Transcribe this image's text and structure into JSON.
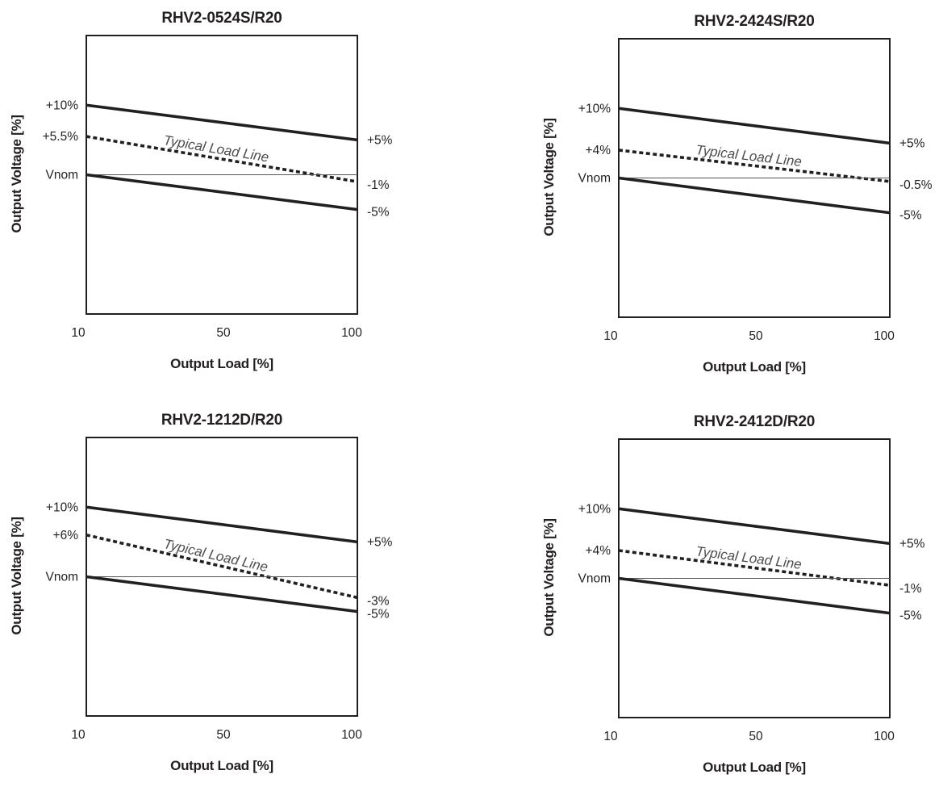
{
  "chart_data": [
    {
      "type": "line",
      "title": "RHV2-0524S/R20",
      "xlabel": "Output Load [%]",
      "ylabel": "Output Voltage [%]",
      "x_ticks": [
        "10",
        "50",
        "100"
      ],
      "xlim": [
        10,
        100
      ],
      "ylim": [
        -20,
        20
      ],
      "y_axis_labels": [
        "+10%",
        "+5.5%",
        "Vnom"
      ],
      "right_labels": [
        "+5%",
        "-1%",
        "-5%"
      ],
      "annotation": "Typical Load Line",
      "series": [
        {
          "x": [
            10,
            100
          ],
          "y": [
            10,
            5
          ],
          "style": "solid"
        },
        {
          "x": [
            10,
            100
          ],
          "y": [
            5.5,
            -1
          ],
          "style": "dashed"
        },
        {
          "x": [
            10,
            100
          ],
          "y": [
            0,
            0
          ],
          "style": "thin"
        },
        {
          "x": [
            10,
            100
          ],
          "y": [
            0,
            -5
          ],
          "style": "solid"
        }
      ]
    },
    {
      "type": "line",
      "title": "RHV2-2424S/R20",
      "xlabel": "Output Load [%]",
      "ylabel": "Output Voltage [%]",
      "x_ticks": [
        "10",
        "50",
        "100"
      ],
      "xlim": [
        10,
        100
      ],
      "ylim": [
        -20,
        20
      ],
      "y_axis_labels": [
        "+10%",
        "+4%",
        "Vnom"
      ],
      "right_labels": [
        "+5%",
        "-0.5%",
        "-5%"
      ],
      "annotation": "Typical Load Line",
      "series": [
        {
          "x": [
            10,
            100
          ],
          "y": [
            10,
            5
          ],
          "style": "solid"
        },
        {
          "x": [
            10,
            100
          ],
          "y": [
            4,
            -0.5
          ],
          "style": "dashed"
        },
        {
          "x": [
            10,
            100
          ],
          "y": [
            0,
            0
          ],
          "style": "thin"
        },
        {
          "x": [
            10,
            100
          ],
          "y": [
            0,
            -5
          ],
          "style": "solid"
        }
      ]
    },
    {
      "type": "line",
      "title": "RHV2-1212D/R20",
      "xlabel": "Output Load [%]",
      "ylabel": "Output Voltage [%]",
      "x_ticks": [
        "10",
        "50",
        "100"
      ],
      "xlim": [
        10,
        100
      ],
      "ylim": [
        -20,
        20
      ],
      "y_axis_labels": [
        "+10%",
        "+6%",
        "Vnom"
      ],
      "right_labels": [
        "+5%",
        "-3%",
        "-5%"
      ],
      "annotation": "Typical Load Line",
      "series": [
        {
          "x": [
            10,
            100
          ],
          "y": [
            10,
            5
          ],
          "style": "solid"
        },
        {
          "x": [
            10,
            100
          ],
          "y": [
            6,
            -3
          ],
          "style": "dashed"
        },
        {
          "x": [
            10,
            100
          ],
          "y": [
            0,
            0
          ],
          "style": "thin"
        },
        {
          "x": [
            10,
            100
          ],
          "y": [
            0,
            -5
          ],
          "style": "solid"
        }
      ]
    },
    {
      "type": "line",
      "title": "RHV2-2412D/R20",
      "xlabel": "Output Load [%]",
      "ylabel": "Output Voltage [%]",
      "x_ticks": [
        "10",
        "50",
        "100"
      ],
      "xlim": [
        10,
        100
      ],
      "ylim": [
        -20,
        20
      ],
      "y_axis_labels": [
        "+10%",
        "+4%",
        "Vnom"
      ],
      "right_labels": [
        "+5%",
        "-1%",
        "-5%"
      ],
      "annotation": "Typical Load Line",
      "series": [
        {
          "x": [
            10,
            100
          ],
          "y": [
            10,
            5
          ],
          "style": "solid"
        },
        {
          "x": [
            10,
            100
          ],
          "y": [
            4,
            -1
          ],
          "style": "dashed"
        },
        {
          "x": [
            10,
            100
          ],
          "y": [
            0,
            0
          ],
          "style": "thin"
        },
        {
          "x": [
            10,
            100
          ],
          "y": [
            0,
            -5
          ],
          "style": "solid"
        }
      ]
    }
  ],
  "colors": {
    "line": "#231f20",
    "background": "#ffffff"
  }
}
